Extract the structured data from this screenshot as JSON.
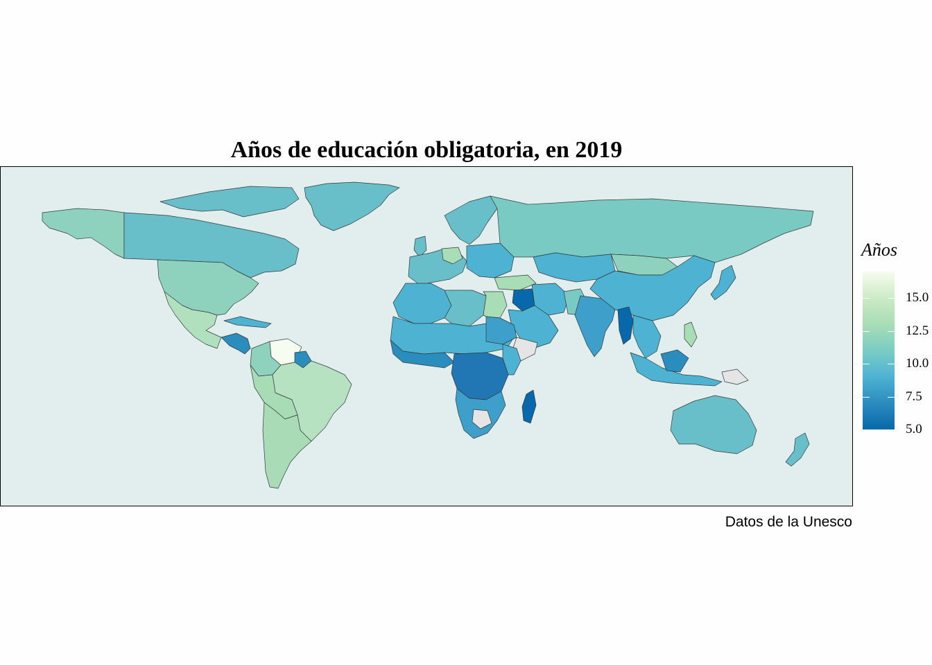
{
  "title": "Años de educación obligatoria, en 2019",
  "caption": "Datos de la Unesco",
  "legend": {
    "title": "Años",
    "min": 5.0,
    "max": 17.0,
    "ticks": [
      "15.0",
      "12.5",
      "10.0",
      "7.5",
      "5.0"
    ],
    "tick_values": [
      15.0,
      12.5,
      10.0,
      7.5,
      5.0
    ],
    "colors": [
      "#f7fcf0",
      "#ccebc5",
      "#a8ddb5",
      "#7bccc4",
      "#4eb3d3",
      "#2b8cbe",
      "#0868ac"
    ]
  },
  "colors": {
    "ocean": "#e1eeed",
    "no_data": "#e5e5e5",
    "border": "#2f3a3a"
  }
}
